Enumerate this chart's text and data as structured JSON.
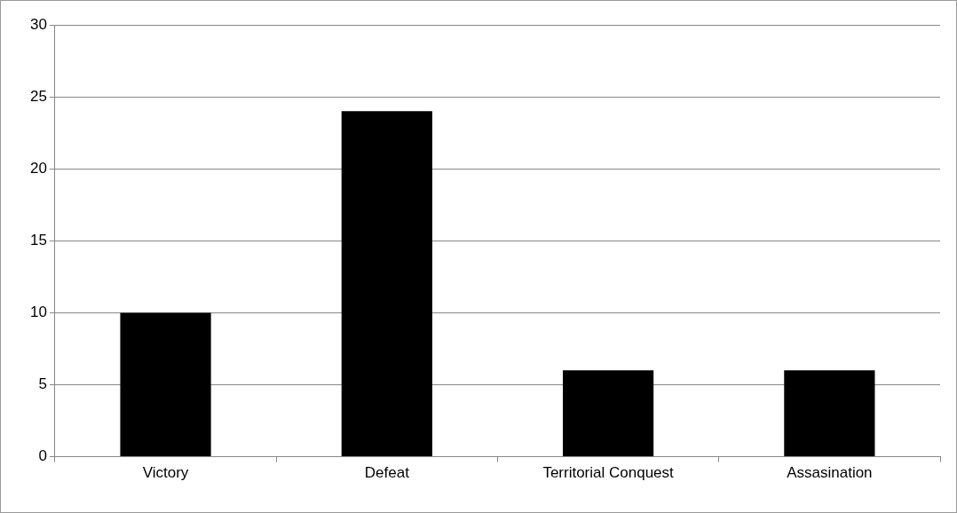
{
  "chart_data": {
    "type": "bar",
    "categories": [
      "Victory",
      "Defeat",
      "Territorial Conquest",
      "Assasination"
    ],
    "values": [
      10,
      24,
      6,
      6
    ],
    "color": "#000000",
    "ylim": [
      0,
      30
    ],
    "yticks": [
      0,
      5,
      10,
      15,
      20,
      25,
      30
    ],
    "grid": "y",
    "legend": false
  }
}
